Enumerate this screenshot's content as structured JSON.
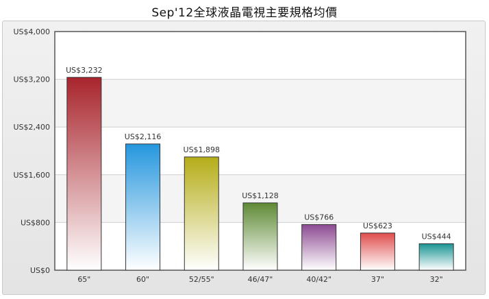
{
  "chart_data": {
    "type": "bar",
    "title": "Sep'12全球液晶電視主要規格均價",
    "xlabel": "",
    "ylabel": "",
    "categories": [
      "65\"",
      "60\"",
      "52/55\"",
      "46/47\"",
      "40/42\"",
      "37\"",
      "32\""
    ],
    "values": [
      3232,
      2116,
      1898,
      1128,
      766,
      623,
      444
    ],
    "data_labels": [
      "US$3,232",
      "US$2,116",
      "US$1,898",
      "US$1,128",
      "US$766",
      "US$623",
      "US$444"
    ],
    "ylim": [
      0,
      4000
    ],
    "yticks": [
      0,
      800,
      1600,
      2400,
      3200,
      4000
    ],
    "ytick_labels": [
      "US$0",
      "US$800",
      "US$1,600",
      "US$2,400",
      "US$3,200",
      "US$4,000"
    ],
    "grid": true,
    "legend": "none",
    "colors": [
      "#a8242c",
      "#2596de",
      "#b5ad18",
      "#5e8a35",
      "#8c4a92",
      "#e04d4d",
      "#1c9494"
    ]
  }
}
